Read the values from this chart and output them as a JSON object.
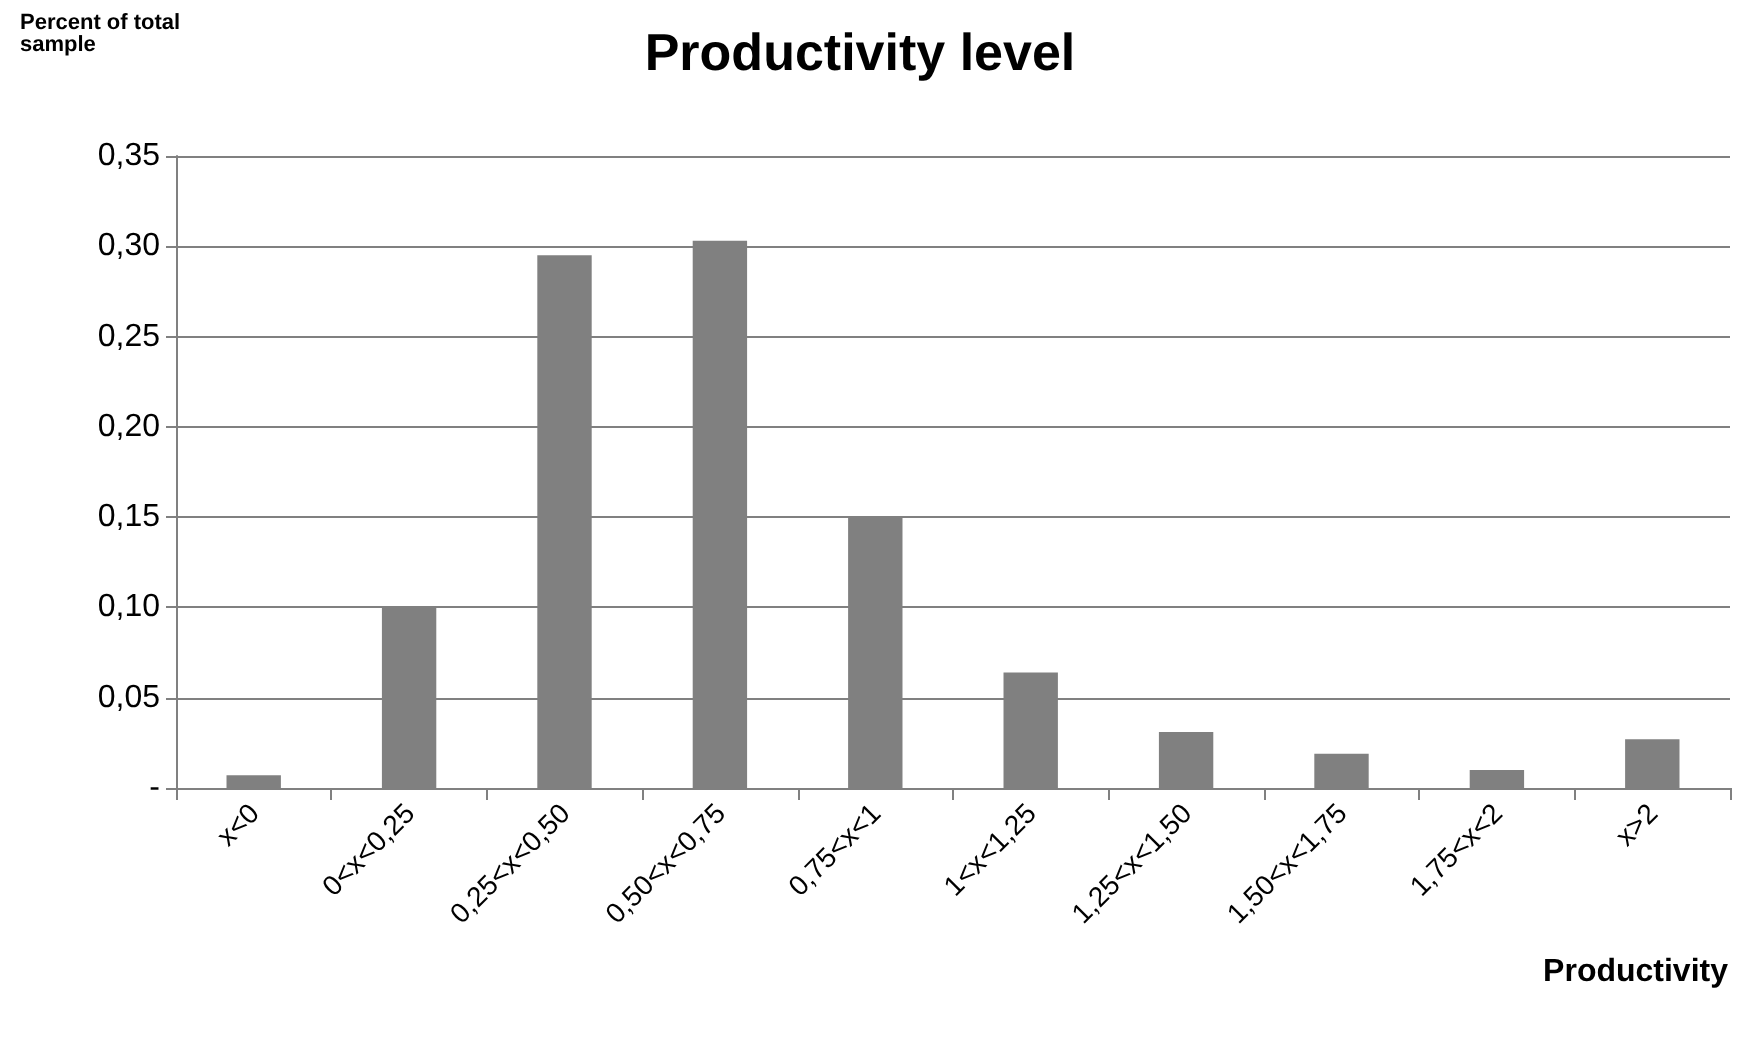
{
  "chart_data": {
    "type": "bar",
    "title": "Productivity level",
    "xlabel": "Productivity",
    "ylabel": "Percent of total sample",
    "categories": [
      "x<0",
      "0<x<0,25",
      "0,25<x<0,50",
      "0,50<x<0,75",
      "0,75<x<1",
      "1<x<1,25",
      "1,25<x<1,50",
      "1,50<x<1,75",
      "1,75<x<2",
      "x>2"
    ],
    "values": [
      0.007,
      0.1,
      0.295,
      0.303,
      0.15,
      0.064,
      0.031,
      0.019,
      0.01,
      0.027
    ],
    "color": "#808080",
    "ylim": [
      0,
      0.35
    ],
    "yticks": [
      {
        "value": 0,
        "label": "-"
      },
      {
        "value": 0.05,
        "label": "0,05"
      },
      {
        "value": 0.1,
        "label": "0,10"
      },
      {
        "value": 0.15,
        "label": "0,15"
      },
      {
        "value": 0.2,
        "label": "0,20"
      },
      {
        "value": 0.25,
        "label": "0,25"
      },
      {
        "value": 0.3,
        "label": "0,30"
      },
      {
        "value": 0.35,
        "label": "0,35"
      }
    ],
    "grid": "y"
  }
}
